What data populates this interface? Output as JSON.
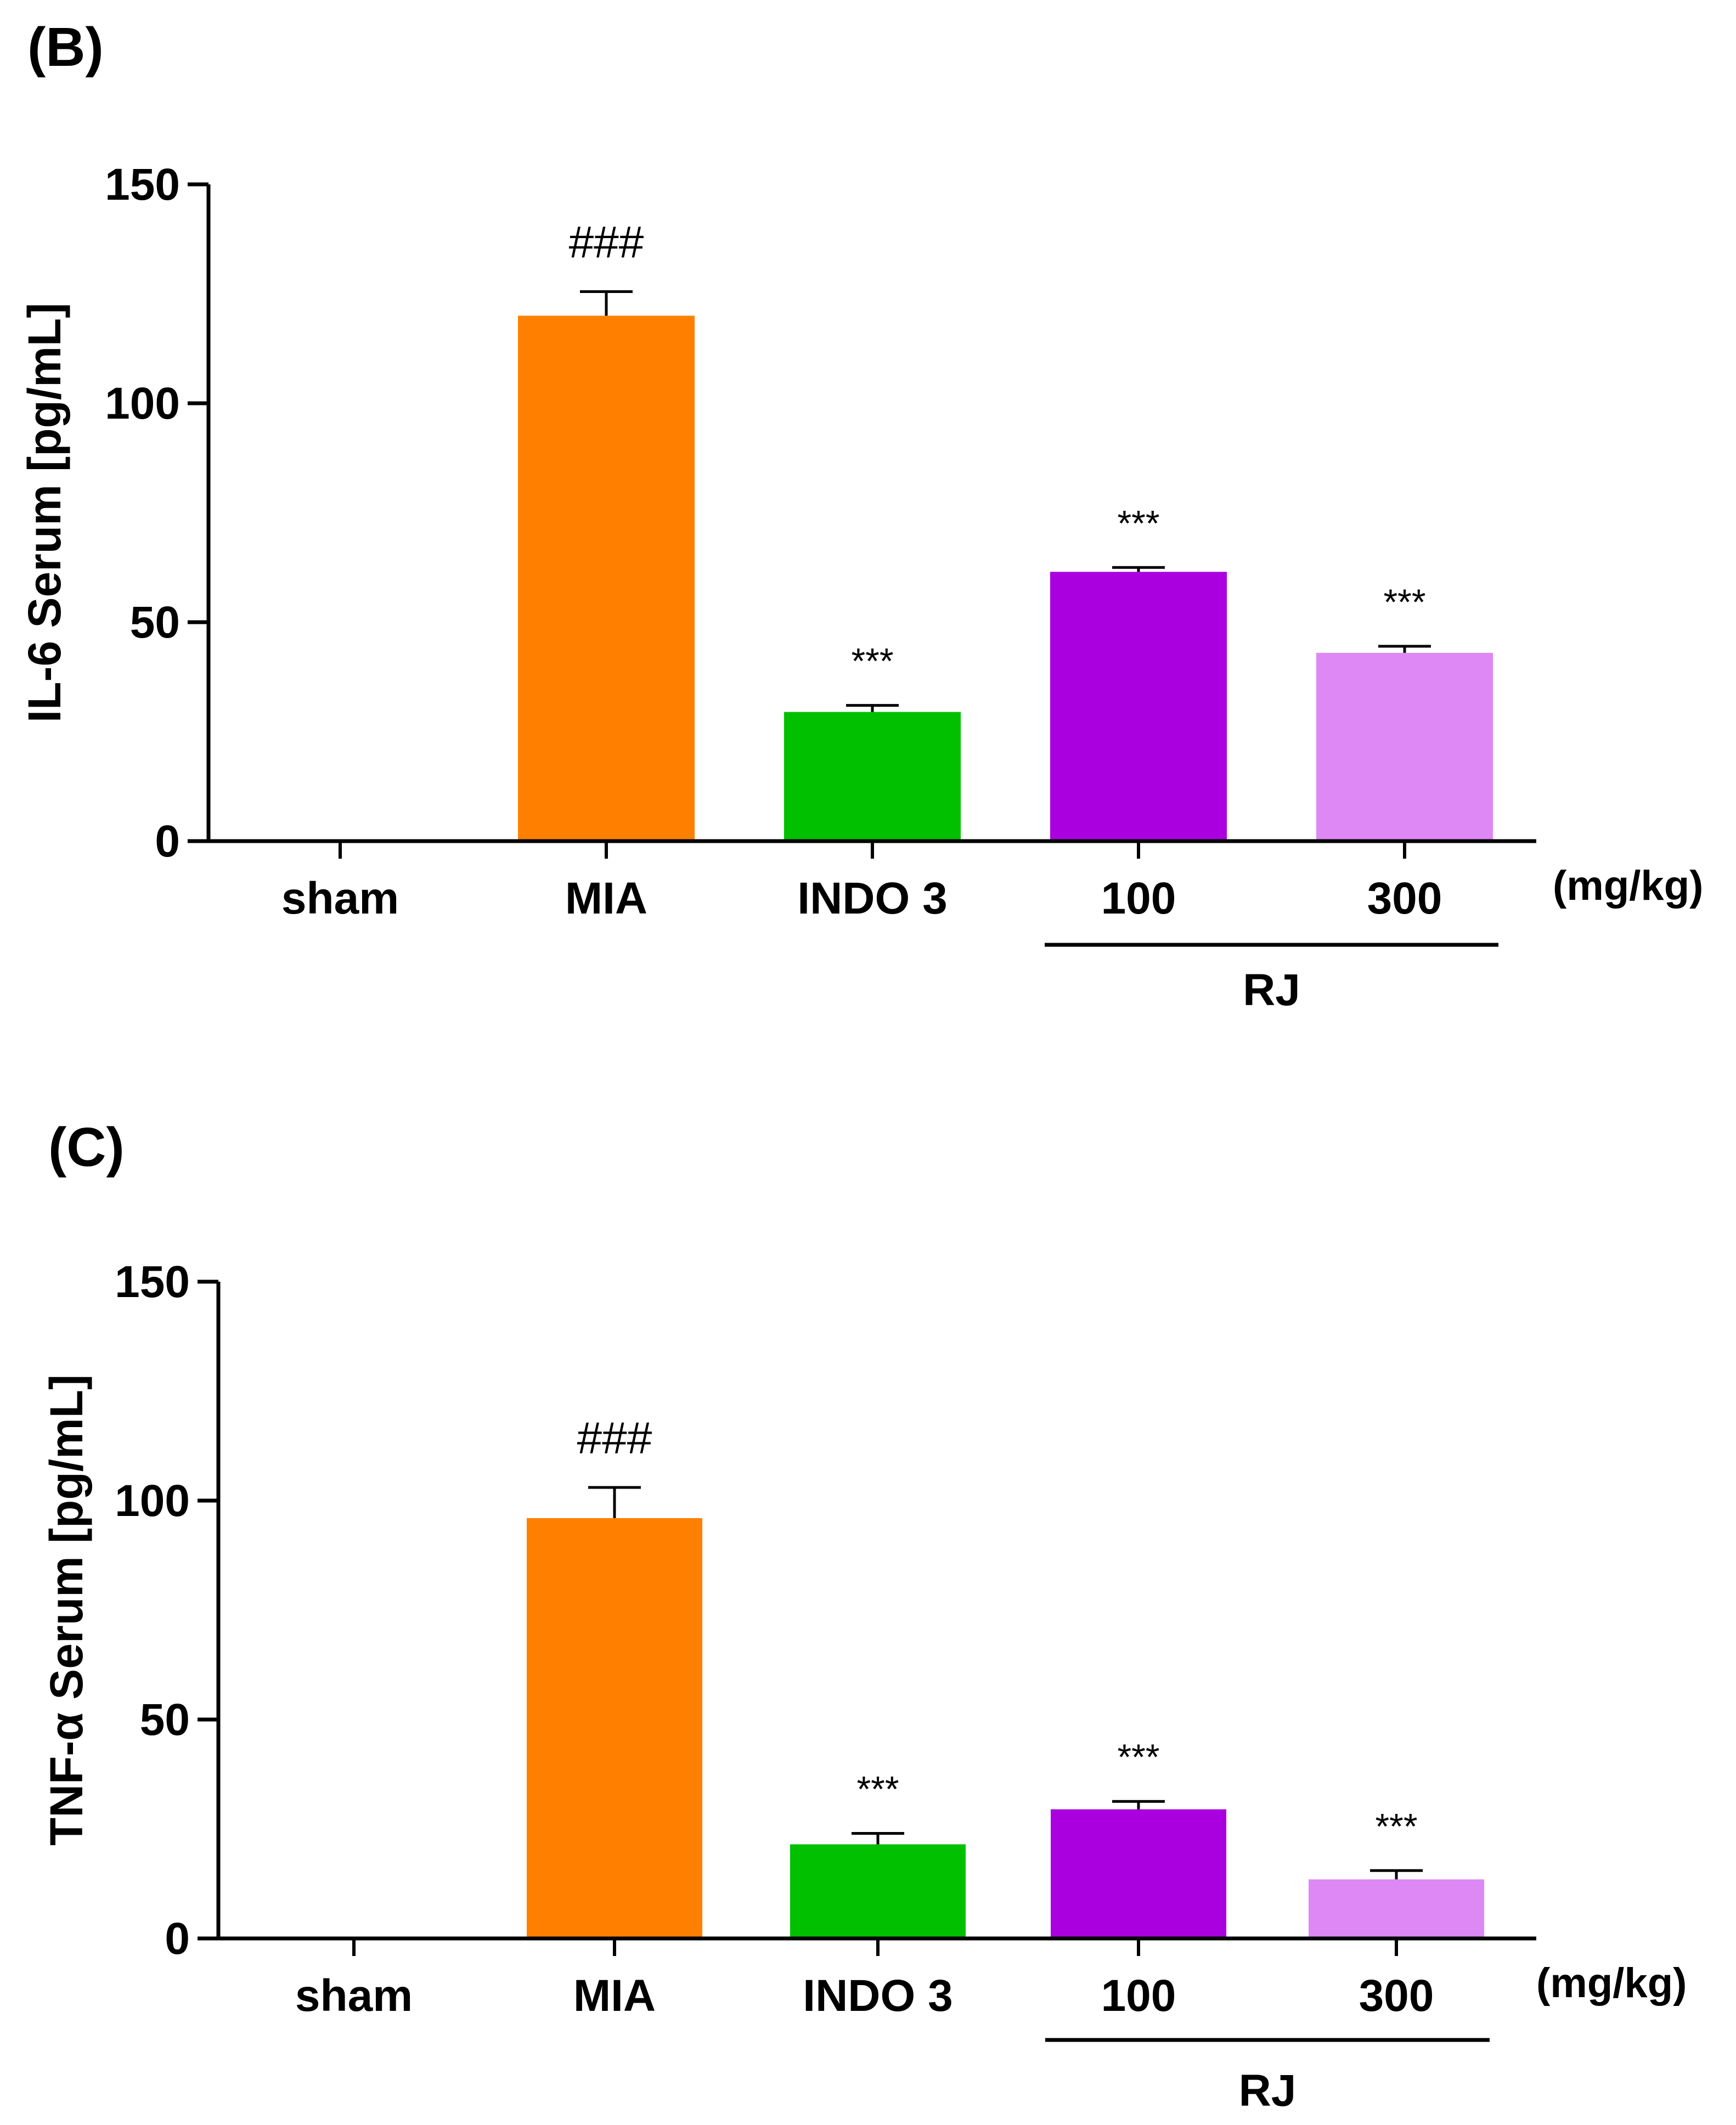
{
  "chart_data": [
    {
      "type": "bar",
      "panel_label": "(B)",
      "ylabel": "IL-6 Serum [pg/mL]",
      "ylim": [
        0,
        150
      ],
      "yticks": [
        0,
        50,
        100,
        150
      ],
      "categories": [
        "sham",
        "MIA",
        "INDO 3",
        "100",
        "300"
      ],
      "values": [
        0,
        120,
        29.5,
        61.5,
        43
      ],
      "errors": [
        0,
        5.5,
        1.5,
        1.0,
        1.5
      ],
      "significance": [
        "",
        "###",
        "***",
        "***",
        "***"
      ],
      "colors": [
        "#ff8000",
        "#ff8000",
        "#00c000",
        "#aa00e0",
        "#dd88f5"
      ],
      "unit_label": "(mg/kg)",
      "group_label": "RJ",
      "group_members": [
        "100",
        "300"
      ]
    },
    {
      "type": "bar",
      "panel_label": "(C)",
      "ylabel": "TNF-α Serum [pg/mL]",
      "ylim": [
        0,
        150
      ],
      "yticks": [
        0,
        50,
        100,
        150
      ],
      "categories": [
        "sham",
        "MIA",
        "INDO 3",
        "100",
        "300"
      ],
      "values": [
        0,
        96,
        21.5,
        29.5,
        13.5
      ],
      "errors": [
        0,
        7,
        2.5,
        1.8,
        2.0
      ],
      "significance": [
        "",
        "###",
        "***",
        "***",
        "***"
      ],
      "colors": [
        "#ff8000",
        "#ff8000",
        "#00c000",
        "#aa00e0",
        "#dd88f5"
      ],
      "unit_label": "(mg/kg)",
      "group_label": "RJ",
      "group_members": [
        "100",
        "300"
      ]
    }
  ]
}
